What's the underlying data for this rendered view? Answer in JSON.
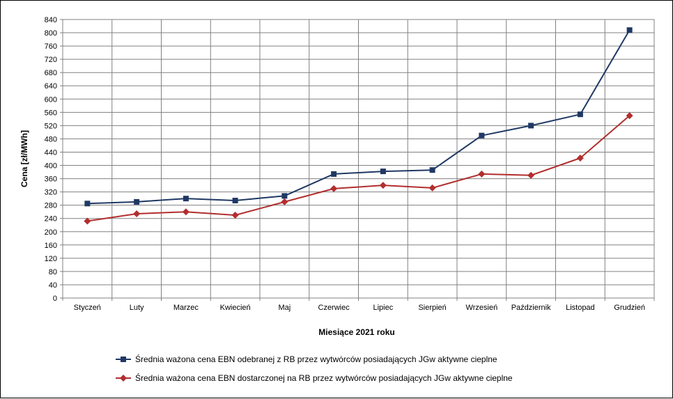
{
  "chart_data": {
    "type": "line",
    "xlabel": "Miesiące 2021  roku",
    "ylabel": "Cena [zł/MWh]",
    "categories": [
      "Styczeń",
      "Luty",
      "Marzec",
      "Kwiecień",
      "Maj",
      "Czerwiec",
      "Lipiec",
      "Sierpień",
      "Wrzesień",
      "Październik",
      "Listopad",
      "Grudzień"
    ],
    "ylim": [
      0,
      840
    ],
    "yticks": [
      0,
      40,
      80,
      120,
      160,
      200,
      240,
      280,
      320,
      360,
      400,
      440,
      480,
      520,
      560,
      600,
      640,
      680,
      720,
      760,
      800,
      840
    ],
    "grid": true,
    "legend_position": "bottom",
    "series": [
      {
        "name": "Średnia ważona cena EBN odebranej z RB przez wytwórców posiadających JGw aktywne cieplne",
        "color": "#1F3864",
        "marker": "square",
        "values": [
          285,
          290,
          300,
          294,
          308,
          374,
          382,
          386,
          490,
          520,
          554,
          808
        ]
      },
      {
        "name": "Średnia ważona cena EBN dostarczonej na RB przez wytwórców posiadających JGw aktywne cieplne",
        "color": "#B22E2E",
        "marker": "diamond",
        "values": [
          232,
          254,
          260,
          250,
          290,
          330,
          340,
          332,
          374,
          370,
          422,
          550
        ]
      }
    ]
  }
}
